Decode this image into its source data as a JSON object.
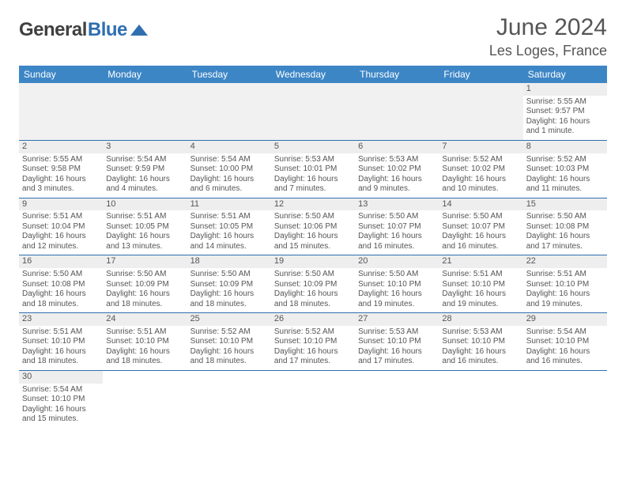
{
  "logo": {
    "part1": "General",
    "part2": "Blue",
    "triangle_color": "#2f6fb0"
  },
  "title": "June 2024",
  "location": "Les Loges, France",
  "colors": {
    "header_bg": "#3d86c6",
    "header_text": "#ffffff",
    "border": "#2f6fb0",
    "daynum_bg": "#eeeeee",
    "text": "#555555"
  },
  "weekdays": [
    "Sunday",
    "Monday",
    "Tuesday",
    "Wednesday",
    "Thursday",
    "Friday",
    "Saturday"
  ],
  "line_labels": {
    "sunrise": "Sunrise: ",
    "sunset": "Sunset: ",
    "daylight": "Daylight: "
  },
  "grid": {
    "leading_empty": 6,
    "trailing_empty": 6,
    "days": [
      {
        "n": 1,
        "sunrise": "5:55 AM",
        "sunset": "9:57 PM",
        "daylight": "16 hours and 1 minute."
      },
      {
        "n": 2,
        "sunrise": "5:55 AM",
        "sunset": "9:58 PM",
        "daylight": "16 hours and 3 minutes."
      },
      {
        "n": 3,
        "sunrise": "5:54 AM",
        "sunset": "9:59 PM",
        "daylight": "16 hours and 4 minutes."
      },
      {
        "n": 4,
        "sunrise": "5:54 AM",
        "sunset": "10:00 PM",
        "daylight": "16 hours and 6 minutes."
      },
      {
        "n": 5,
        "sunrise": "5:53 AM",
        "sunset": "10:01 PM",
        "daylight": "16 hours and 7 minutes."
      },
      {
        "n": 6,
        "sunrise": "5:53 AM",
        "sunset": "10:02 PM",
        "daylight": "16 hours and 9 minutes."
      },
      {
        "n": 7,
        "sunrise": "5:52 AM",
        "sunset": "10:02 PM",
        "daylight": "16 hours and 10 minutes."
      },
      {
        "n": 8,
        "sunrise": "5:52 AM",
        "sunset": "10:03 PM",
        "daylight": "16 hours and 11 minutes."
      },
      {
        "n": 9,
        "sunrise": "5:51 AM",
        "sunset": "10:04 PM",
        "daylight": "16 hours and 12 minutes."
      },
      {
        "n": 10,
        "sunrise": "5:51 AM",
        "sunset": "10:05 PM",
        "daylight": "16 hours and 13 minutes."
      },
      {
        "n": 11,
        "sunrise": "5:51 AM",
        "sunset": "10:05 PM",
        "daylight": "16 hours and 14 minutes."
      },
      {
        "n": 12,
        "sunrise": "5:50 AM",
        "sunset": "10:06 PM",
        "daylight": "16 hours and 15 minutes."
      },
      {
        "n": 13,
        "sunrise": "5:50 AM",
        "sunset": "10:07 PM",
        "daylight": "16 hours and 16 minutes."
      },
      {
        "n": 14,
        "sunrise": "5:50 AM",
        "sunset": "10:07 PM",
        "daylight": "16 hours and 16 minutes."
      },
      {
        "n": 15,
        "sunrise": "5:50 AM",
        "sunset": "10:08 PM",
        "daylight": "16 hours and 17 minutes."
      },
      {
        "n": 16,
        "sunrise": "5:50 AM",
        "sunset": "10:08 PM",
        "daylight": "16 hours and 18 minutes."
      },
      {
        "n": 17,
        "sunrise": "5:50 AM",
        "sunset": "10:09 PM",
        "daylight": "16 hours and 18 minutes."
      },
      {
        "n": 18,
        "sunrise": "5:50 AM",
        "sunset": "10:09 PM",
        "daylight": "16 hours and 18 minutes."
      },
      {
        "n": 19,
        "sunrise": "5:50 AM",
        "sunset": "10:09 PM",
        "daylight": "16 hours and 18 minutes."
      },
      {
        "n": 20,
        "sunrise": "5:50 AM",
        "sunset": "10:10 PM",
        "daylight": "16 hours and 19 minutes."
      },
      {
        "n": 21,
        "sunrise": "5:51 AM",
        "sunset": "10:10 PM",
        "daylight": "16 hours and 19 minutes."
      },
      {
        "n": 22,
        "sunrise": "5:51 AM",
        "sunset": "10:10 PM",
        "daylight": "16 hours and 19 minutes."
      },
      {
        "n": 23,
        "sunrise": "5:51 AM",
        "sunset": "10:10 PM",
        "daylight": "16 hours and 18 minutes."
      },
      {
        "n": 24,
        "sunrise": "5:51 AM",
        "sunset": "10:10 PM",
        "daylight": "16 hours and 18 minutes."
      },
      {
        "n": 25,
        "sunrise": "5:52 AM",
        "sunset": "10:10 PM",
        "daylight": "16 hours and 18 minutes."
      },
      {
        "n": 26,
        "sunrise": "5:52 AM",
        "sunset": "10:10 PM",
        "daylight": "16 hours and 17 minutes."
      },
      {
        "n": 27,
        "sunrise": "5:53 AM",
        "sunset": "10:10 PM",
        "daylight": "16 hours and 17 minutes."
      },
      {
        "n": 28,
        "sunrise": "5:53 AM",
        "sunset": "10:10 PM",
        "daylight": "16 hours and 16 minutes."
      },
      {
        "n": 29,
        "sunrise": "5:54 AM",
        "sunset": "10:10 PM",
        "daylight": "16 hours and 16 minutes."
      },
      {
        "n": 30,
        "sunrise": "5:54 AM",
        "sunset": "10:10 PM",
        "daylight": "16 hours and 15 minutes."
      }
    ]
  }
}
